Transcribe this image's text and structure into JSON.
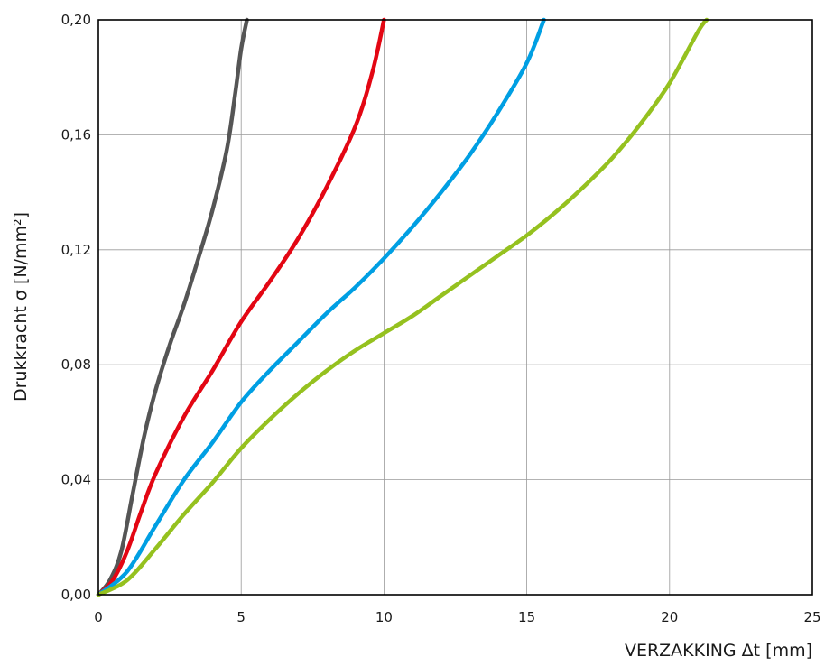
{
  "chart_data": {
    "type": "line",
    "title": "",
    "xlabel": "VERZAKKING Δt [mm]",
    "ylabel": "Drukkracht σ [N/mm²]",
    "xlim": [
      0,
      25
    ],
    "ylim": [
      0,
      0.2
    ],
    "grid": true,
    "legend": "none",
    "x_ticks": [
      0,
      5,
      10,
      15,
      20,
      25
    ],
    "x_tick_labels": [
      "0",
      "5",
      "10",
      "15",
      "20",
      "25"
    ],
    "y_ticks": [
      0,
      0.04,
      0.08,
      0.12,
      0.16,
      0.2
    ],
    "y_tick_labels": [
      "0,00",
      "0,04",
      "0,08",
      "0,12",
      "0,16",
      "0,20"
    ],
    "series": [
      {
        "color": "#555555",
        "points": [
          [
            0,
            0
          ],
          [
            0.4,
            0.005
          ],
          [
            0.8,
            0.015
          ],
          [
            1.2,
            0.035
          ],
          [
            1.6,
            0.055
          ],
          [
            2.0,
            0.071
          ],
          [
            2.5,
            0.087
          ],
          [
            3.0,
            0.101
          ],
          [
            3.5,
            0.117
          ],
          [
            4.0,
            0.134
          ],
          [
            4.5,
            0.155
          ],
          [
            4.8,
            0.175
          ],
          [
            5.0,
            0.19
          ],
          [
            5.2,
            0.2
          ]
        ]
      },
      {
        "color": "#e30613",
        "points": [
          [
            0,
            0
          ],
          [
            0.5,
            0.005
          ],
          [
            1.0,
            0.015
          ],
          [
            1.5,
            0.029
          ],
          [
            2.0,
            0.042
          ],
          [
            3.0,
            0.062
          ],
          [
            4.0,
            0.078
          ],
          [
            5.0,
            0.095
          ],
          [
            6.0,
            0.109
          ],
          [
            7.0,
            0.124
          ],
          [
            8.0,
            0.142
          ],
          [
            9.0,
            0.163
          ],
          [
            9.6,
            0.182
          ],
          [
            10.0,
            0.2
          ]
        ]
      },
      {
        "color": "#009fe3",
        "points": [
          [
            0,
            0
          ],
          [
            1.0,
            0.008
          ],
          [
            2.0,
            0.024
          ],
          [
            3.0,
            0.04
          ],
          [
            4.0,
            0.053
          ],
          [
            5.0,
            0.067
          ],
          [
            6.0,
            0.078
          ],
          [
            7.0,
            0.088
          ],
          [
            8.0,
            0.098
          ],
          [
            9.0,
            0.107
          ],
          [
            10.0,
            0.117
          ],
          [
            11.0,
            0.128
          ],
          [
            12.0,
            0.14
          ],
          [
            13.0,
            0.153
          ],
          [
            14.0,
            0.168
          ],
          [
            15.0,
            0.185
          ],
          [
            15.6,
            0.2
          ]
        ]
      },
      {
        "color": "#95c11f",
        "points": [
          [
            0,
            0
          ],
          [
            1.0,
            0.005
          ],
          [
            2.0,
            0.016
          ],
          [
            3.0,
            0.028
          ],
          [
            4.0,
            0.039
          ],
          [
            5.0,
            0.051
          ],
          [
            6.0,
            0.061
          ],
          [
            7.0,
            0.07
          ],
          [
            8.0,
            0.078
          ],
          [
            9.0,
            0.085
          ],
          [
            10.0,
            0.091
          ],
          [
            11.0,
            0.097
          ],
          [
            12.0,
            0.104
          ],
          [
            13.0,
            0.111
          ],
          [
            14.0,
            0.118
          ],
          [
            15.0,
            0.125
          ],
          [
            16.0,
            0.133
          ],
          [
            17.0,
            0.142
          ],
          [
            18.0,
            0.152
          ],
          [
            19.0,
            0.164
          ],
          [
            20.0,
            0.178
          ],
          [
            21.0,
            0.196
          ],
          [
            21.3,
            0.2
          ]
        ]
      }
    ]
  }
}
